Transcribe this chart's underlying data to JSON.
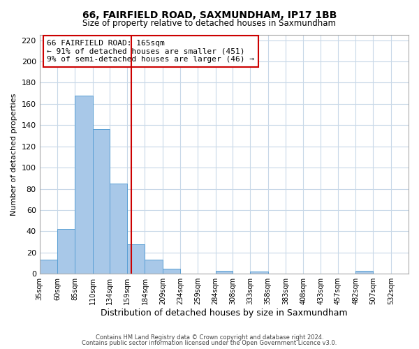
{
  "title": "66, FAIRFIELD ROAD, SAXMUNDHAM, IP17 1BB",
  "subtitle": "Size of property relative to detached houses in Saxmundham",
  "xlabel": "Distribution of detached houses by size in Saxmundham",
  "ylabel": "Number of detached properties",
  "bar_edges": [
    35,
    60,
    85,
    110,
    134,
    159,
    184,
    209,
    234,
    259,
    284,
    308,
    333,
    358,
    383,
    408,
    433,
    457,
    482,
    507,
    532
  ],
  "bar_heights": [
    13,
    42,
    168,
    136,
    85,
    28,
    13,
    5,
    0,
    0,
    3,
    0,
    2,
    0,
    0,
    0,
    0,
    0,
    3,
    0,
    0
  ],
  "bar_color": "#a8c8e8",
  "bar_edge_color": "#5a9fd4",
  "property_line_x": 165,
  "property_line_color": "#cc0000",
  "ylim": [
    0,
    225
  ],
  "yticks": [
    0,
    20,
    40,
    60,
    80,
    100,
    120,
    140,
    160,
    180,
    200,
    220
  ],
  "annotation_title": "66 FAIRFIELD ROAD: 165sqm",
  "annotation_line1": "← 91% of detached houses are smaller (451)",
  "annotation_line2": "9% of semi-detached houses are larger (46) →",
  "annotation_box_color": "#ffffff",
  "annotation_box_edge_color": "#cc0000",
  "tick_labels": [
    "35sqm",
    "60sqm",
    "85sqm",
    "110sqm",
    "134sqm",
    "159sqm",
    "184sqm",
    "209sqm",
    "234sqm",
    "259sqm",
    "284sqm",
    "308sqm",
    "333sqm",
    "358sqm",
    "383sqm",
    "408sqm",
    "433sqm",
    "457sqm",
    "482sqm",
    "507sqm",
    "532sqm"
  ],
  "footer_line1": "Contains HM Land Registry data © Crown copyright and database right 2024.",
  "footer_line2": "Contains public sector information licensed under the Open Government Licence v3.0.",
  "background_color": "#ffffff",
  "grid_color": "#c8d8e8",
  "xlim_left": 35,
  "xlim_right": 557
}
